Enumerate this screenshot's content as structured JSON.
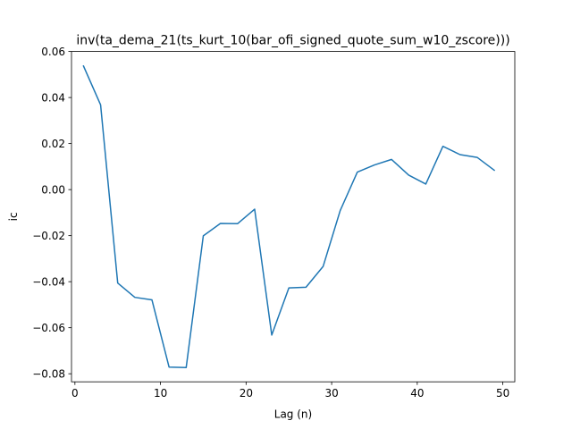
{
  "chart_data": {
    "type": "line",
    "title": "inv(ta_dema_21(ts_kurt_10(bar_ofi_signed_quote_sum_w10_zscore)))",
    "xlabel": "Lag (n)",
    "ylabel": "ic",
    "xlim": [
      -0.4,
      51.4
    ],
    "ylim": [
      -0.0835,
      0.06
    ],
    "xticks": [
      0,
      10,
      20,
      30,
      40,
      50
    ],
    "xtick_labels": [
      "0",
      "10",
      "20",
      "30",
      "40",
      "50"
    ],
    "yticks": [
      -0.08,
      -0.06,
      -0.04,
      -0.02,
      0.0,
      0.02,
      0.04,
      0.06
    ],
    "ytick_labels": [
      "−0.08",
      "−0.06",
      "−0.04",
      "−0.02",
      "0.00",
      "0.02",
      "0.04",
      "0.06"
    ],
    "grid": false,
    "series": [
      {
        "color": "#1f77b4",
        "x": [
          1,
          3,
          5,
          7,
          9,
          11,
          13,
          15,
          17,
          19,
          21,
          23,
          25,
          27,
          29,
          31,
          33,
          35,
          37,
          39,
          41,
          43,
          45,
          47,
          49
        ],
        "y": [
          0.0537,
          0.0368,
          -0.0406,
          -0.0468,
          -0.0479,
          -0.0771,
          -0.0773,
          -0.0201,
          -0.0147,
          -0.0148,
          -0.0085,
          -0.0632,
          -0.0427,
          -0.0424,
          -0.0334,
          -0.0091,
          0.0076,
          0.0107,
          0.0131,
          0.0063,
          0.0024,
          0.0188,
          0.0152,
          0.014,
          0.0084
        ]
      }
    ]
  }
}
